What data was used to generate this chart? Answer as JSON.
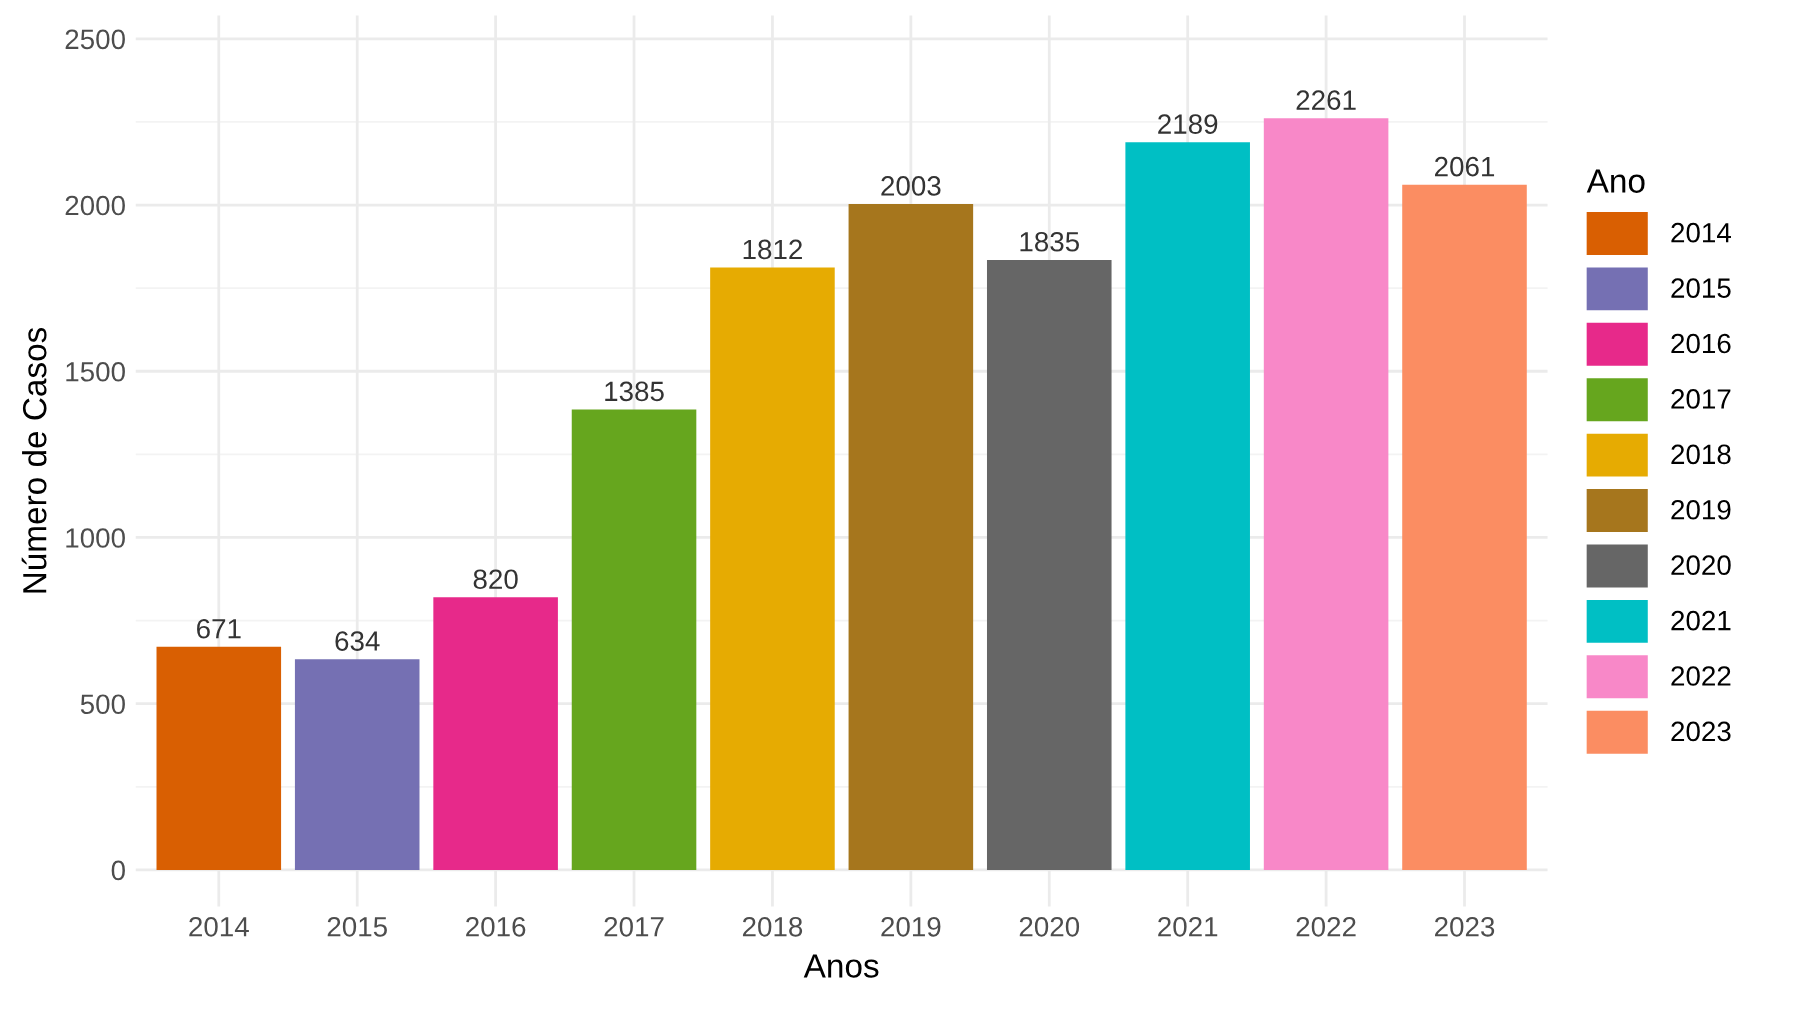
{
  "chart_data": {
    "type": "bar",
    "xlabel": "Anos",
    "ylabel": "Número de Casos",
    "legend_title": "Ano",
    "categories": [
      "2014",
      "2015",
      "2016",
      "2017",
      "2018",
      "2019",
      "2020",
      "2021",
      "2022",
      "2023"
    ],
    "series": [
      {
        "name": "2014",
        "color": "#d95f02",
        "values": [
          671,
          null,
          null,
          null,
          null,
          null,
          null,
          null,
          null,
          null
        ]
      },
      {
        "name": "2015",
        "color": "#7570b3",
        "values": [
          null,
          634,
          null,
          null,
          null,
          null,
          null,
          null,
          null,
          null
        ]
      },
      {
        "name": "2016",
        "color": "#e7298a",
        "values": [
          null,
          null,
          820,
          null,
          null,
          null,
          null,
          null,
          null,
          null
        ]
      },
      {
        "name": "2017",
        "color": "#66a61e",
        "values": [
          null,
          null,
          null,
          1385,
          null,
          null,
          null,
          null,
          null,
          null
        ]
      },
      {
        "name": "2018",
        "color": "#e6ab02",
        "values": [
          null,
          null,
          null,
          null,
          1812,
          null,
          null,
          null,
          null,
          null
        ]
      },
      {
        "name": "2019",
        "color": "#a6761d",
        "values": [
          null,
          null,
          null,
          null,
          null,
          2003,
          null,
          null,
          null,
          null
        ]
      },
      {
        "name": "2020",
        "color": "#666666",
        "values": [
          null,
          null,
          null,
          null,
          null,
          null,
          1835,
          null,
          null,
          null
        ]
      },
      {
        "name": "2021",
        "color": "#00bfc4",
        "values": [
          null,
          null,
          null,
          null,
          null,
          null,
          null,
          2189,
          null,
          null
        ]
      },
      {
        "name": "2022",
        "color": "#f888c8",
        "values": [
          null,
          null,
          null,
          null,
          null,
          null,
          null,
          null,
          2261,
          null
        ]
      },
      {
        "name": "2023",
        "color": "#fb8d62",
        "values": [
          null,
          null,
          null,
          null,
          null,
          null,
          null,
          null,
          null,
          2061
        ]
      }
    ],
    "ylim": [
      -110,
      2570
    ],
    "yticks": [
      0,
      500,
      1000,
      1500,
      2000,
      2500
    ],
    "data_labels": true,
    "grid": true,
    "legend": "right"
  }
}
